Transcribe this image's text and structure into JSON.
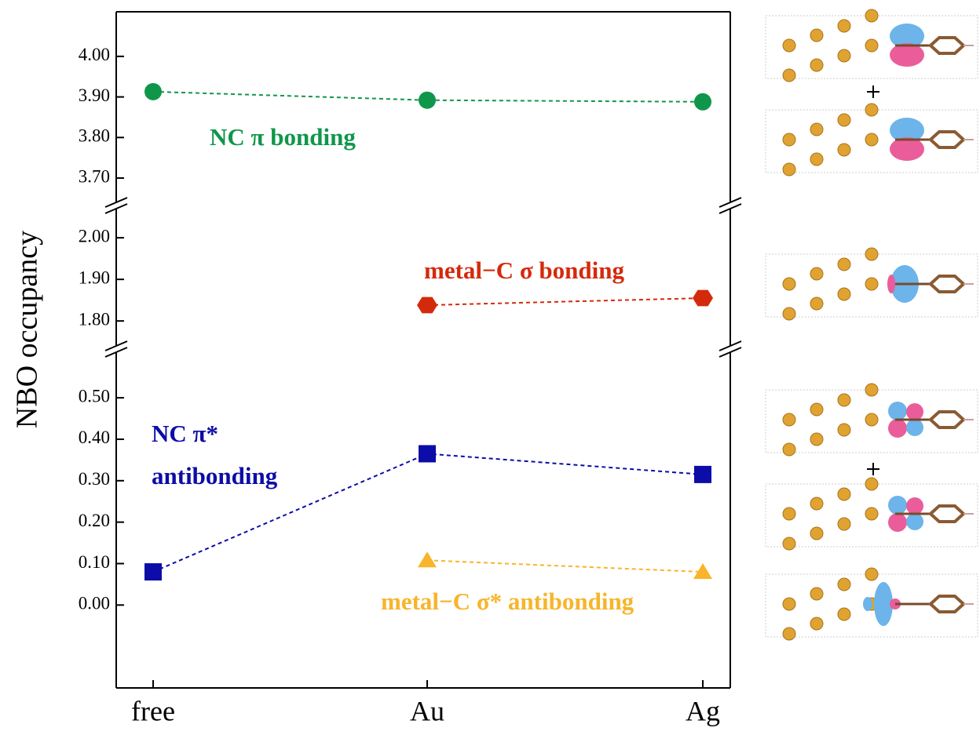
{
  "chart_data": {
    "type": "line",
    "ylabel": "NBO occupancy",
    "categories": [
      "free",
      "Au",
      "Ag"
    ],
    "panels": [
      {
        "ylim": [
          3.64,
          4.11
        ],
        "yticks": [
          {
            "value": 3.7,
            "label": "3.70"
          },
          {
            "value": 3.8,
            "label": "3.80"
          },
          {
            "value": 3.9,
            "label": "3.90"
          },
          {
            "value": 4.0,
            "label": "4.00"
          }
        ],
        "series": [
          {
            "name": "NC π bonding",
            "color": "#10964a",
            "marker": "circle",
            "values": [
              3.913,
              3.892,
              3.888
            ]
          }
        ]
      },
      {
        "ylim": [
          1.74,
          2.07
        ],
        "yticks": [
          {
            "value": 1.8,
            "label": "1.80"
          },
          {
            "value": 1.9,
            "label": "1.90"
          },
          {
            "value": 2.0,
            "label": "2.00"
          }
        ],
        "series": [
          {
            "name": "metal−C σ bonding",
            "color": "#d42a0c",
            "marker": "hexagon",
            "values": [
              null,
              1.838,
              1.855
            ]
          }
        ]
      },
      {
        "ylim": [
          -0.2,
          0.61
        ],
        "yticks": [
          {
            "value": 0,
            "label": "0.00"
          },
          {
            "value": 0.1,
            "label": "0.10"
          },
          {
            "value": 0.2,
            "label": "0.20"
          },
          {
            "value": 0.3,
            "label": "0.30"
          },
          {
            "value": 0.4,
            "label": "0.40"
          },
          {
            "value": 0.5,
            "label": "0.50"
          }
        ],
        "series": [
          {
            "name": "NC π* antibonding",
            "color": "#0c0ca8",
            "marker": "square",
            "values": [
              0.08,
              0.365,
              0.315
            ]
          },
          {
            "name": "metal−C σ* antibonding",
            "color": "#f8b42a",
            "marker": "triangle",
            "values": [
              null,
              0.108,
              0.08
            ]
          }
        ]
      }
    ]
  }
}
